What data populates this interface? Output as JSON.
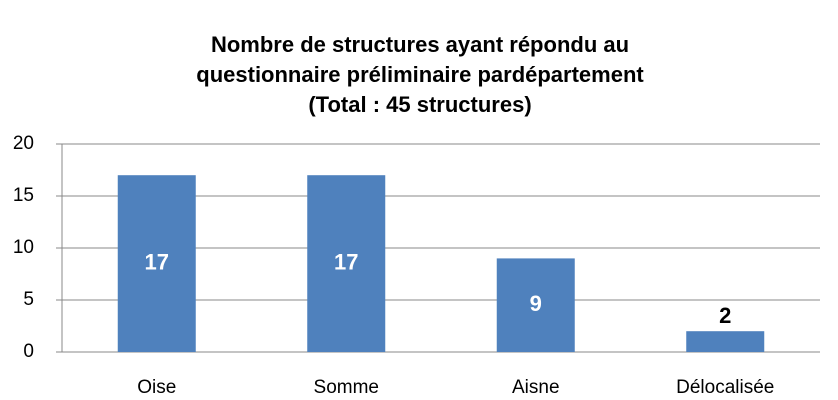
{
  "chart_data": {
    "type": "bar",
    "title": [
      "Nombre de structures ayant répondu au",
      "questionnaire préliminaire pardépartement",
      "(Total : 45 structures)"
    ],
    "categories": [
      "Oise",
      "Somme",
      "Aisne",
      "Délocalisée"
    ],
    "values": [
      17,
      17,
      9,
      2
    ],
    "color": "#4f81bd",
    "ylim": [
      0,
      20
    ],
    "yticks": [
      0,
      5,
      10,
      15,
      20
    ],
    "grid": true
  }
}
